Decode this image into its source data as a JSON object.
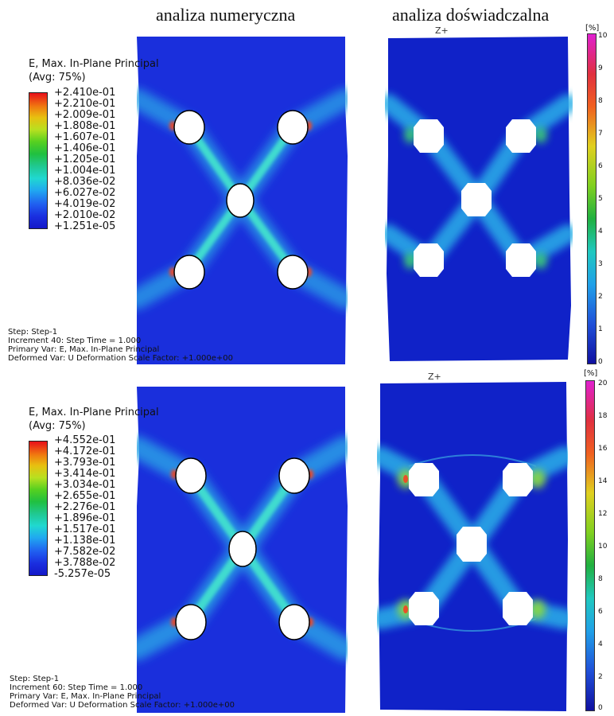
{
  "headings": {
    "numerical": "analiza numeryczna",
    "experimental": "analiza doświadczalna"
  },
  "top_legend": {
    "title_line1": "E, Max. In-Plane Principal",
    "title_line2": "(Avg: 75%)",
    "values": [
      "+2.410e-01",
      "+2.210e-01",
      "+2.009e-01",
      "+1.808e-01",
      "+1.607e-01",
      "+1.406e-01",
      "+1.205e-01",
      "+1.004e-01",
      "+8.036e-02",
      "+6.027e-02",
      "+4.019e-02",
      "+2.010e-02",
      "+1.251e-05"
    ]
  },
  "bottom_legend": {
    "title_line1": "E, Max. In-Plane Principal",
    "title_line2": "(Avg: 75%)",
    "values": [
      "+4.552e-01",
      "+4.172e-01",
      "+3.793e-01",
      "+3.414e-01",
      "+3.034e-01",
      "+2.655e-01",
      "+2.276e-01",
      "+1.896e-01",
      "+1.517e-01",
      "+1.138e-01",
      "+7.582e-02",
      "+3.788e-02",
      "-5.257e-05"
    ]
  },
  "top_info": {
    "step": "Step: Step-1",
    "increment": "Increment      40: Step Time =    1.000",
    "primary": "Primary Var: E, Max. In-Plane Principal",
    "deformed": "Deformed Var: U   Deformation Scale Factor: +1.000e+00"
  },
  "bottom_info": {
    "step": "Step: Step-1",
    "increment": "Increment      60: Step Time =    1.000",
    "primary": "Primary Var: E, Max. In-Plane Principal",
    "deformed": "Deformed Var: U   Deformation Scale Factor: +1.000e+00"
  },
  "experimental_top": {
    "axis_label": "Z+",
    "unit": "[%]",
    "ticks": [
      "10",
      "9",
      "8",
      "7",
      "6",
      "5",
      "4",
      "3",
      "2",
      "1",
      "0"
    ]
  },
  "experimental_bottom": {
    "axis_label": "Z+",
    "unit": "[%]",
    "ticks": [
      "20",
      "18",
      "16",
      "14",
      "12",
      "10",
      "8",
      "6",
      "4",
      "2",
      "0"
    ]
  },
  "colors": {
    "field_low": "#1a2fdc",
    "field_exp_low": "#1022c8",
    "band_cyan": "#33d6d0",
    "hotspot": "#e8402a"
  }
}
